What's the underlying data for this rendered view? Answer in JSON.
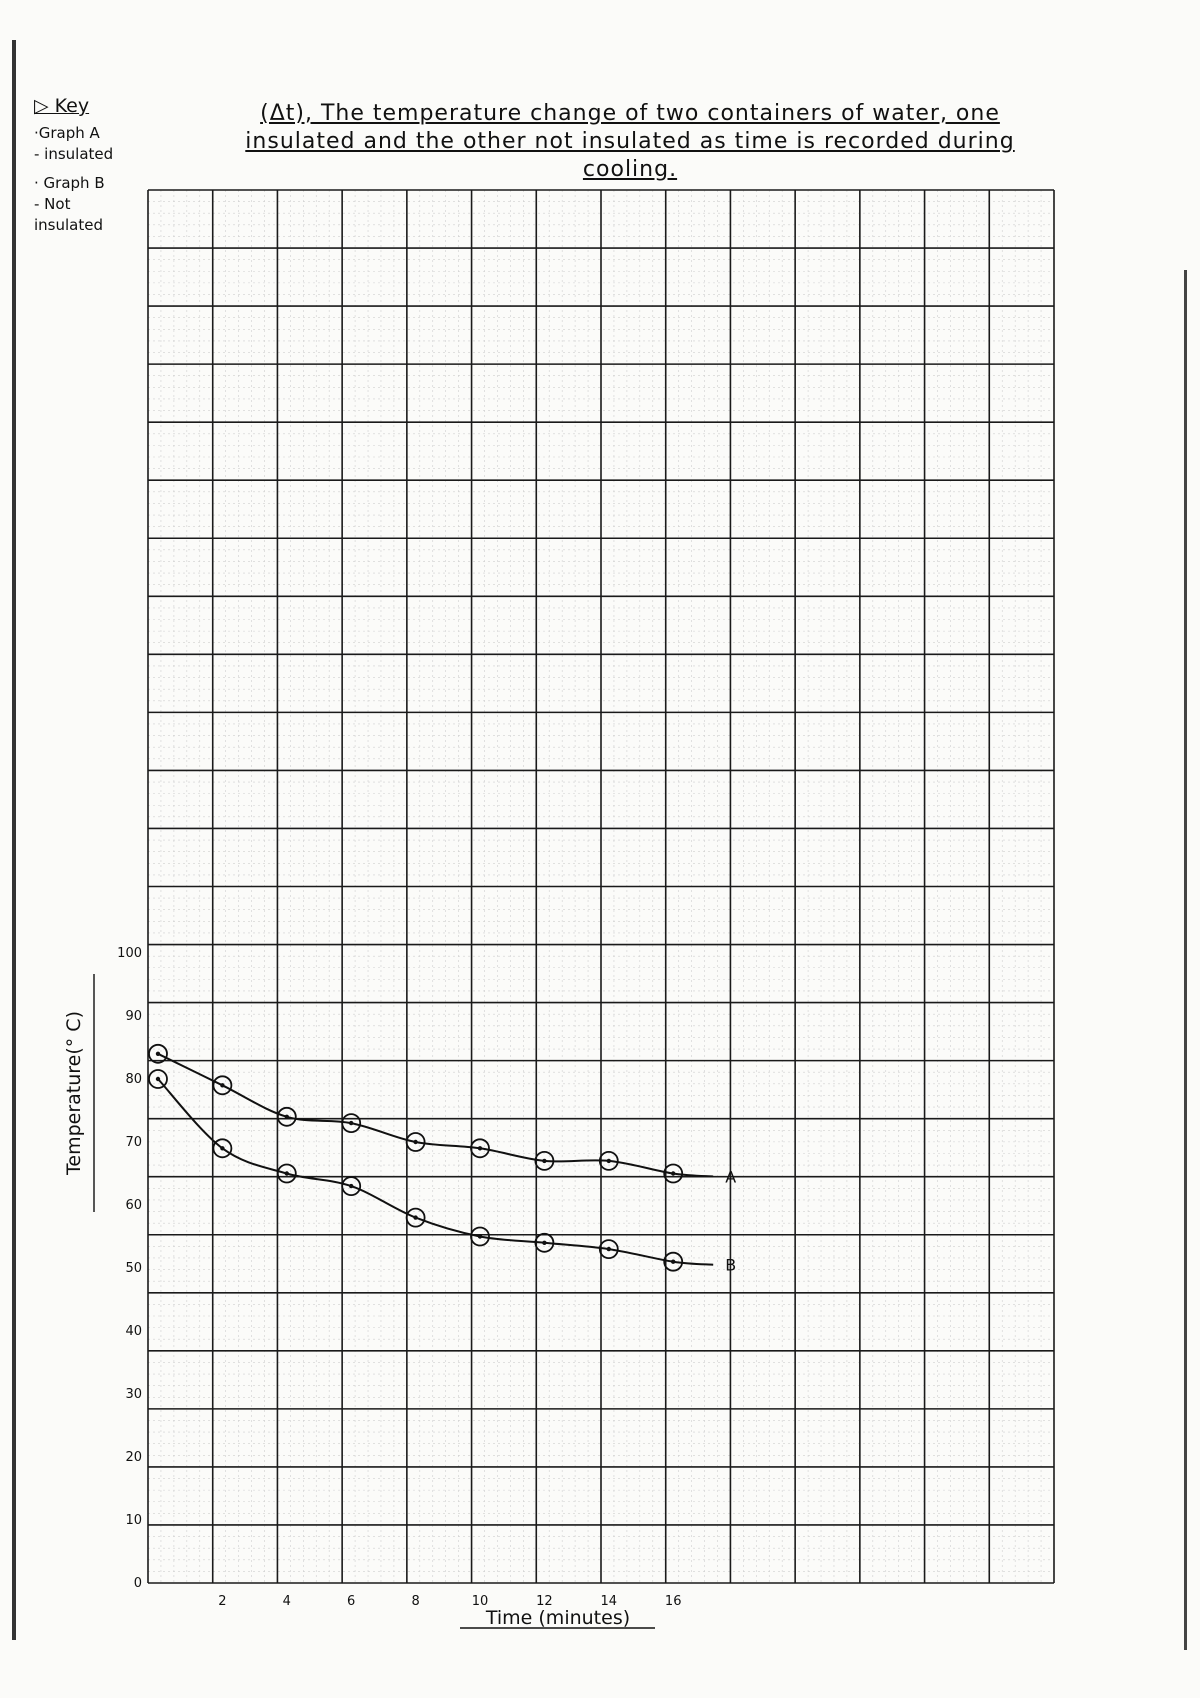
{
  "key": {
    "title": "▷ Key",
    "graph_a": "·Graph A",
    "graph_a_desc": "- insulated",
    "graph_b": "· Graph B",
    "graph_b_desc_1": "- Not",
    "graph_b_desc_2": "insulated"
  },
  "chart_data": {
    "type": "line",
    "title": "(Δt), The temperature change of two containers of water, one insulated and the other not insulated as time is recorded during cooling.",
    "xlabel": "Time (minutes)",
    "ylabel": "Temperature(° C)",
    "xlim": [
      0,
      28
    ],
    "ylim": [
      0,
      100
    ],
    "x_ticks": [
      "2",
      "4",
      "6",
      "8",
      "10",
      "12",
      "14",
      "16"
    ],
    "y_ticks": [
      "0",
      "10",
      "20",
      "30",
      "40",
      "50",
      "60",
      "70",
      "80",
      "90",
      "100"
    ],
    "grid": true,
    "series": [
      {
        "name": "A",
        "x": [
          0,
          2,
          4,
          6,
          8,
          10,
          12,
          14,
          16
        ],
        "values": [
          84,
          79,
          74,
          73,
          70,
          69,
          67,
          67,
          65
        ]
      },
      {
        "name": "B",
        "x": [
          0,
          2,
          4,
          6,
          8,
          10,
          12,
          14,
          16
        ],
        "values": [
          80,
          69,
          65,
          63,
          58,
          55,
          54,
          53,
          51
        ]
      }
    ]
  }
}
